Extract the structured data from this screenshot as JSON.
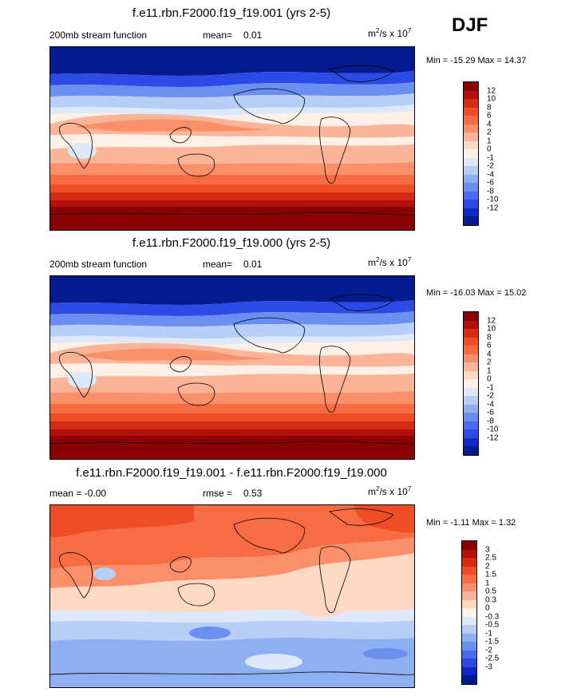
{
  "season": "DJF",
  "panels": [
    {
      "title": "f.e11.rbn.F2000.f19_f19.001 (yrs 2-5)",
      "left_label": "200mb stream function",
      "mean_label": "mean=",
      "mean_value": "0.01",
      "units_base": "m",
      "units_rest": "/s x 10",
      "units_sup1": "2",
      "units_sup2": "7",
      "min_max": "Min = -15.29 Max =  14.37",
      "colorbar": {
        "colors": [
          "#8b0000",
          "#b30f0b",
          "#d52b12",
          "#ee4d26",
          "#f76c42",
          "#fb8f6a",
          "#fbb497",
          "#fdd8c3",
          "#fef0e6",
          "#dde9fb",
          "#b7cef7",
          "#8eaff2",
          "#6b8ff0",
          "#4a6df0",
          "#2b4ae6",
          "#1228c8",
          "#061a8f"
        ],
        "labels": [
          "12",
          "10",
          "8",
          "6",
          "4",
          "2",
          "1",
          "0",
          "-1",
          "-2",
          "-4",
          "-6",
          "-8",
          "-10",
          "-12"
        ]
      }
    },
    {
      "title": "f.e11.rbn.F2000.f19_f19.000 (yrs 2-5)",
      "left_label": "200mb stream function",
      "mean_label": "mean=",
      "mean_value": "0.01",
      "units_base": "m",
      "units_rest": "/s x 10",
      "units_sup1": "2",
      "units_sup2": "7",
      "min_max": "Min = -16.03 Max =  15.02",
      "colorbar": {
        "colors": [
          "#8b0000",
          "#b30f0b",
          "#d52b12",
          "#ee4d26",
          "#f76c42",
          "#fb8f6a",
          "#fbb497",
          "#fdd8c3",
          "#fef0e6",
          "#dde9fb",
          "#b7cef7",
          "#8eaff2",
          "#6b8ff0",
          "#4a6df0",
          "#2b4ae6",
          "#1228c8",
          "#061a8f"
        ],
        "labels": [
          "12",
          "10",
          "8",
          "6",
          "4",
          "2",
          "1",
          "0",
          "-1",
          "-2",
          "-4",
          "-6",
          "-8",
          "-10",
          "-12"
        ]
      }
    },
    {
      "title": "f.e11.rbn.F2000.f19_f19.001 - f.e11.rbn.F2000.f19_f19.000",
      "left_label": "mean =  -0.00",
      "mean_label": "rmse =",
      "mean_value": "0.53",
      "units_base": "m",
      "units_rest": "/s x 10",
      "units_sup1": "2",
      "units_sup2": "7",
      "min_max": "Min =  -1.11 Max =   1.32",
      "colorbar": {
        "colors": [
          "#8b0000",
          "#b30f0b",
          "#d52b12",
          "#ee4d26",
          "#f76c42",
          "#fb8f6a",
          "#fbb497",
          "#fdd8c3",
          "#fef0e6",
          "#dde9fb",
          "#b7cef7",
          "#8eaff2",
          "#6b8ff0",
          "#4a6df0",
          "#2b4ae6",
          "#1228c8",
          "#061a8f"
        ],
        "labels": [
          "3",
          "2.5",
          "2",
          "1.5",
          "1",
          "0.5",
          "0.3",
          "0",
          "-0.3",
          "-0.5",
          "-1",
          "-1.5",
          "-2",
          "-2.5",
          "-3"
        ]
      }
    }
  ]
}
